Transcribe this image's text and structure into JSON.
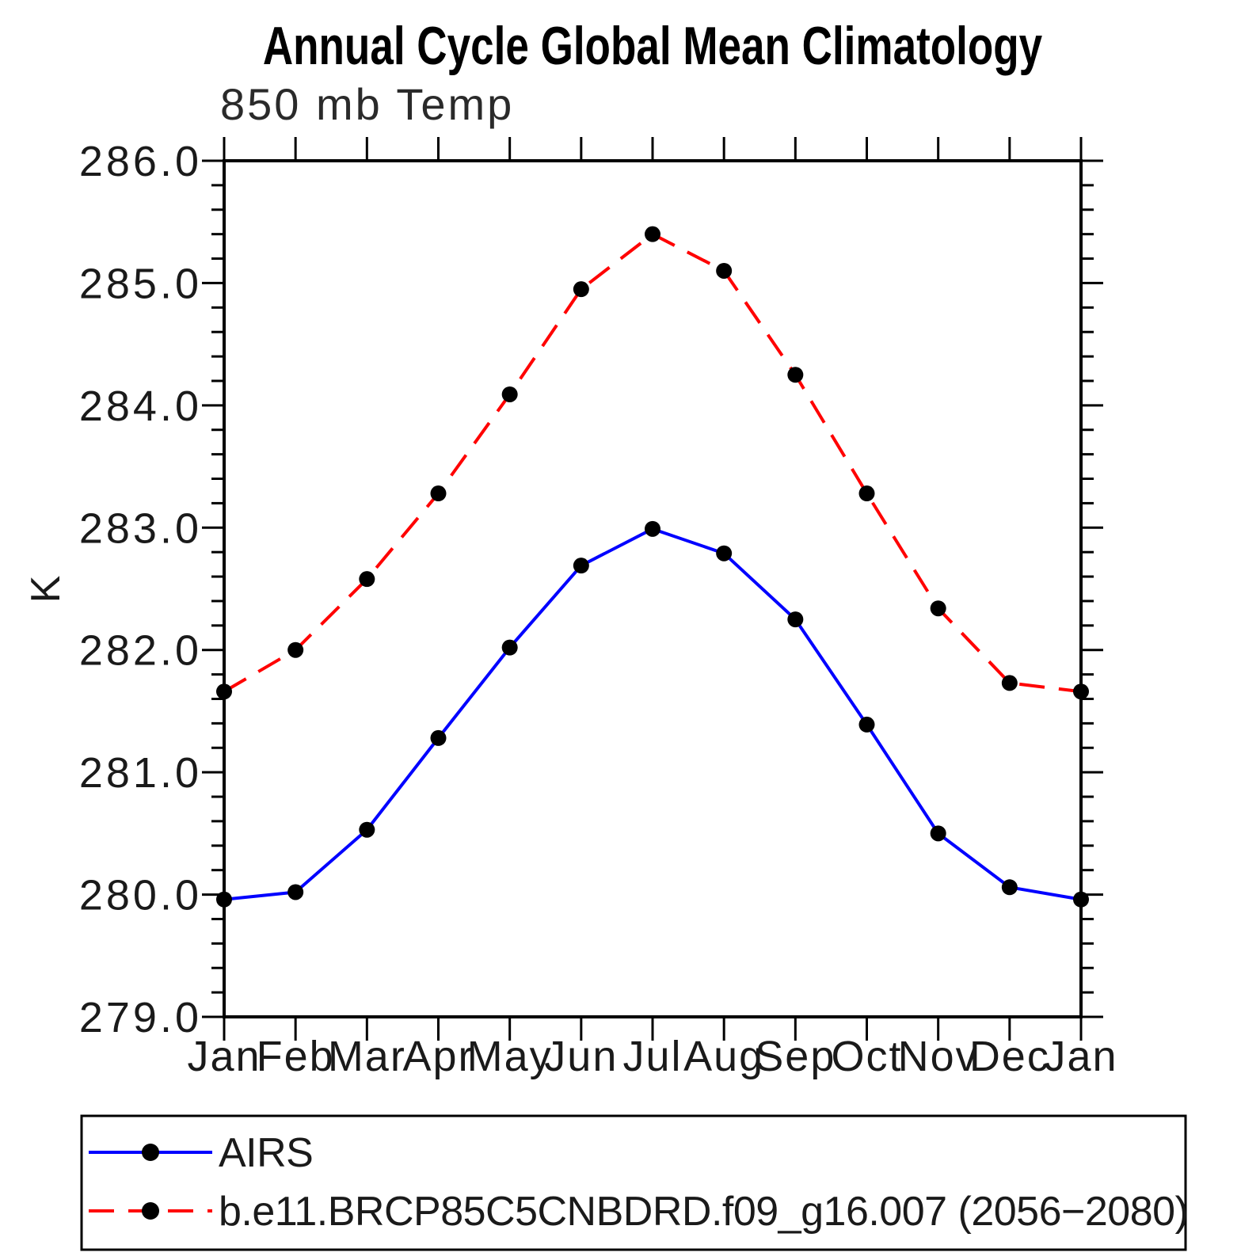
{
  "chart_data": {
    "type": "line",
    "title": "Annual Cycle Global Mean Climatology",
    "subtitle": "850 mb Temp",
    "ylabel": "K",
    "x_categories": [
      "Jan",
      "Feb",
      "Mar",
      "Apr",
      "May",
      "Jun",
      "Jul",
      "Aug",
      "Sep",
      "Oct",
      "Nov",
      "Dec",
      "Jan"
    ],
    "ylim": [
      279.0,
      286.0
    ],
    "y_major_tick_step": 1.0,
    "y_minor_tick_step": 0.2,
    "y_tick_labels": [
      "279.0",
      "280.0",
      "281.0",
      "282.0",
      "283.0",
      "284.0",
      "285.0",
      "286.0"
    ],
    "grid": false,
    "legend_position": "bottom-left",
    "series": [
      {
        "name": "AIRS",
        "color": "#0000ff",
        "line_style": "solid",
        "marker": "circle",
        "marker_color": "#000000",
        "values": [
          279.96,
          280.02,
          280.53,
          281.28,
          282.02,
          282.69,
          282.99,
          282.79,
          282.25,
          281.39,
          280.5,
          280.06,
          279.96
        ]
      },
      {
        "name": "b.e11.BRCP85C5CNBDRD.f09_g16.007 (2056−2080)",
        "color": "#ff0000",
        "line_style": "dashed",
        "marker": "circle",
        "marker_color": "#000000",
        "values": [
          281.66,
          282.0,
          282.58,
          283.28,
          284.09,
          284.95,
          285.4,
          285.1,
          284.25,
          283.28,
          282.34,
          281.73,
          281.66
        ]
      }
    ]
  }
}
